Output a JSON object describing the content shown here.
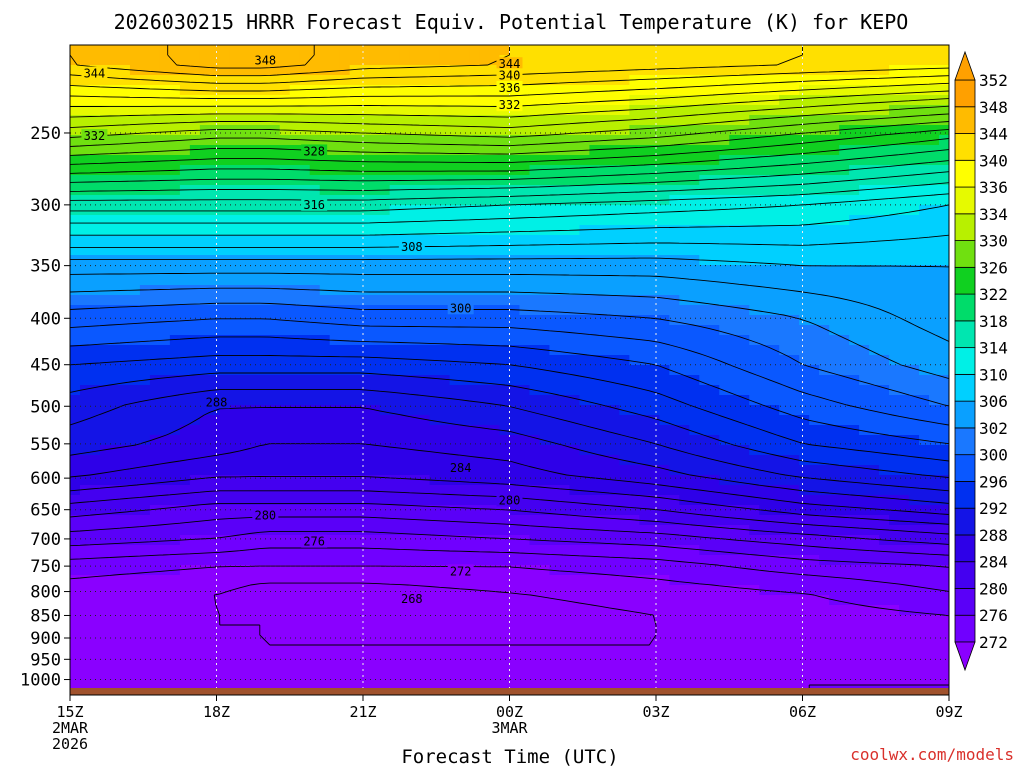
{
  "chart_data": {
    "type": "heatmap",
    "title": "2026030215 HRRR Forecast Equiv. Potential Temperature (K) for KEPO",
    "xlabel": "Forecast Time (UTC)",
    "ylabel": "",
    "x_ticks": [
      {
        "hour": 0,
        "lines": [
          "15Z",
          "2MAR",
          "2026"
        ]
      },
      {
        "hour": 3,
        "lines": [
          "18Z"
        ]
      },
      {
        "hour": 6,
        "lines": [
          "21Z"
        ]
      },
      {
        "hour": 9,
        "lines": [
          "00Z",
          "3MAR"
        ]
      },
      {
        "hour": 12,
        "lines": [
          "03Z"
        ]
      },
      {
        "hour": 15,
        "lines": [
          "06Z"
        ]
      },
      {
        "hour": 18,
        "lines": [
          "09Z"
        ]
      }
    ],
    "xlim": [
      0,
      18
    ],
    "y_ticks": [
      250,
      300,
      350,
      400,
      450,
      500,
      550,
      600,
      650,
      700,
      750,
      800,
      850,
      900,
      950,
      1000
    ],
    "ylim": [
      1040,
      200
    ],
    "y_scale": "log-pressure",
    "grid": true,
    "colorbar": {
      "levels": [
        272,
        276,
        280,
        284,
        288,
        292,
        296,
        300,
        302,
        306,
        310,
        314,
        318,
        322,
        326,
        330,
        334,
        336,
        340,
        344,
        348,
        352
      ],
      "colors": [
        "#8a00ff",
        "#7000ff",
        "#5a00f8",
        "#4400f0",
        "#2e00e8",
        "#1414e6",
        "#0030f0",
        "#0a58ff",
        "#1a78ff",
        "#0aa0ff",
        "#00d0ff",
        "#00f0e6",
        "#00e6b0",
        "#00dc6a",
        "#10d020",
        "#70e010",
        "#b8f000",
        "#e6fa00",
        "#ffff00",
        "#ffe000",
        "#ffbb00",
        "#ffa000"
      ]
    },
    "contour_interval": 2,
    "ground_color": "#a0522d",
    "series": [
      {
        "name": "Equiv. Potential Temperature (K)",
        "x": [
          0,
          3,
          4,
          6,
          9,
          12,
          15,
          18
        ],
        "profiles_at_x": "theta-e by pressure level",
        "levels_hPa": [
          1000,
          950,
          900,
          850,
          800,
          750,
          700,
          650,
          600,
          550,
          500,
          450,
          400,
          350,
          300,
          250,
          210
        ],
        "values": [
          [
            271,
            271,
            270,
            270,
            271,
            271,
            272,
            272
          ],
          [
            271,
            271,
            270,
            270,
            270,
            270,
            271,
            271
          ],
          [
            271,
            270,
            270,
            270,
            270,
            270,
            270,
            271
          ],
          [
            271,
            270,
            270,
            269,
            269,
            270,
            271,
            272
          ],
          [
            271,
            270,
            269,
            269,
            270,
            271,
            272,
            274
          ],
          [
            273,
            272,
            272,
            272,
            272,
            273,
            275,
            276
          ],
          [
            277,
            276,
            275,
            275,
            276,
            277,
            279,
            281
          ],
          [
            281,
            279,
            279,
            279,
            280,
            282,
            285,
            287
          ],
          [
            286,
            284,
            284,
            284,
            285,
            287,
            290,
            292
          ],
          [
            289,
            287,
            286,
            286,
            287,
            290,
            294,
            296
          ],
          [
            291,
            288,
            288,
            288,
            290,
            293,
            297,
            300
          ],
          [
            294,
            293,
            293,
            293,
            294,
            296,
            300,
            303
          ],
          [
            299,
            298,
            298,
            299,
            299,
            300,
            302,
            305
          ],
          [
            305,
            305,
            305,
            305,
            305,
            305,
            306,
            306
          ],
          [
            315,
            315,
            315,
            315,
            314,
            313,
            312,
            310
          ],
          [
            331,
            329,
            329,
            330,
            331,
            329,
            326,
            323
          ],
          [
            344,
            347,
            347,
            345,
            344,
            343,
            342,
            341
          ]
        ]
      }
    ],
    "contour_labels": [
      {
        "text": "344",
        "hour": 0.5,
        "p": 215
      },
      {
        "text": "348",
        "hour": 4.0,
        "p": 208
      },
      {
        "text": "344",
        "hour": 9.0,
        "p": 210
      },
      {
        "text": "340",
        "hour": 9.0,
        "p": 216
      },
      {
        "text": "336",
        "hour": 9.0,
        "p": 223
      },
      {
        "text": "332",
        "hour": 9.0,
        "p": 233
      },
      {
        "text": "332",
        "hour": 0.5,
        "p": 252
      },
      {
        "text": "328",
        "hour": 5.0,
        "p": 262
      },
      {
        "text": "316",
        "hour": 5.0,
        "p": 300
      },
      {
        "text": "308",
        "hour": 7.0,
        "p": 334
      },
      {
        "text": "300",
        "hour": 8.0,
        "p": 390
      },
      {
        "text": "288",
        "hour": 3.0,
        "p": 495
      },
      {
        "text": "284",
        "hour": 8.0,
        "p": 585
      },
      {
        "text": "280",
        "hour": 4.0,
        "p": 660
      },
      {
        "text": "280",
        "hour": 9.0,
        "p": 635
      },
      {
        "text": "276",
        "hour": 5.0,
        "p": 705
      },
      {
        "text": "272",
        "hour": 8.0,
        "p": 760
      },
      {
        "text": "268",
        "hour": 7.0,
        "p": 815
      }
    ]
  },
  "credit": "coolwx.com/models"
}
